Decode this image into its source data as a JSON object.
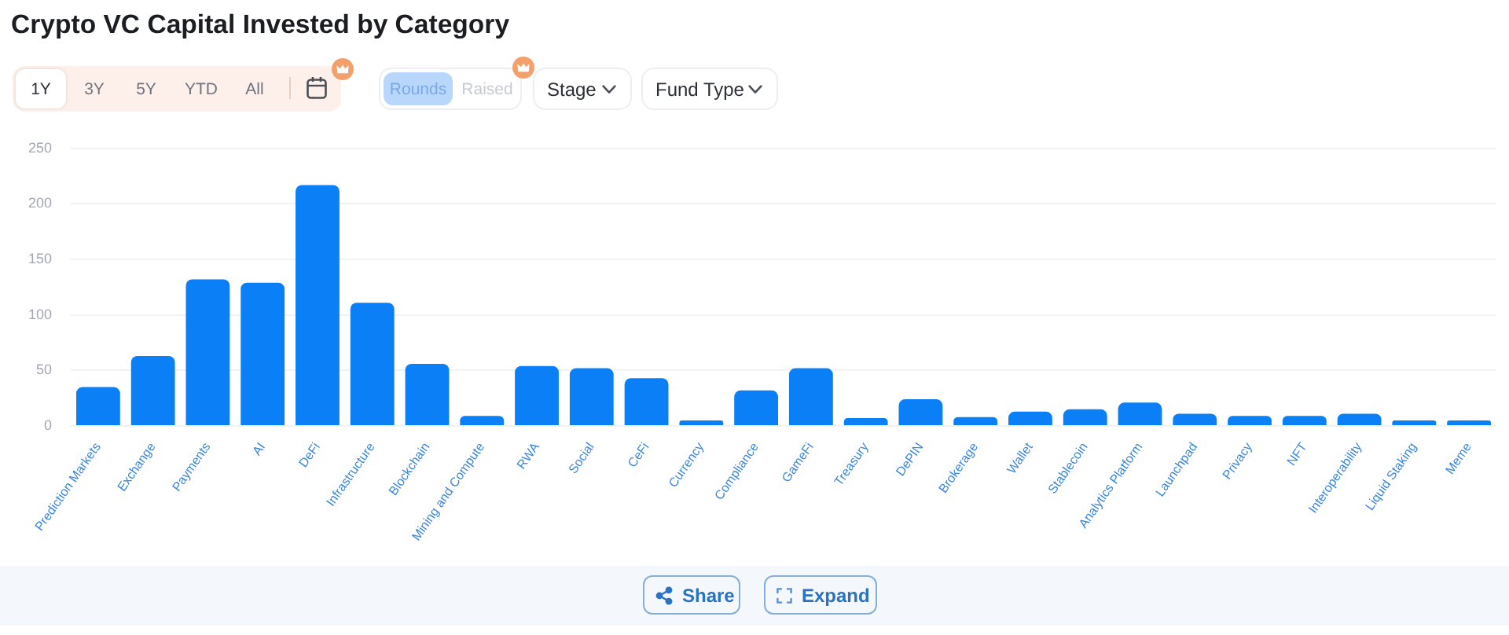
{
  "chart_data": {
    "type": "bar",
    "title": "Crypto VC Capital Invested by Category",
    "categories": [
      "Prediction Markets",
      "Exchange",
      "Payments",
      "AI",
      "DeFi",
      "Infrastructure",
      "Blockchain",
      "Mining and Compute",
      "RWA",
      "Social",
      "CeFi",
      "Currency",
      "Compliance",
      "GameFi",
      "Treasury",
      "DePIN",
      "Brokerage",
      "Wallet",
      "Stablecoin",
      "Analytics Platform",
      "Launchpad",
      "Privacy",
      "NFT",
      "Interoperability",
      "Liquid Staking",
      "Meme"
    ],
    "values": [
      35,
      63,
      132,
      129,
      217,
      111,
      56,
      9,
      54,
      52,
      43,
      5,
      32,
      52,
      7,
      24,
      8,
      13,
      15,
      21,
      11,
      9,
      9,
      11,
      5,
      5
    ],
    "color": "#0a7ff6",
    "ylim": [
      0,
      250
    ],
    "yticks": [
      0,
      50,
      100,
      150,
      200,
      250
    ],
    "grid": "y",
    "annotations": [
      "1Y",
      "3Y",
      "5Y",
      "YTD",
      "All",
      "Rounds",
      "Raised",
      "Stage",
      "Fund Type",
      "Share",
      "Expand"
    ]
  }
}
